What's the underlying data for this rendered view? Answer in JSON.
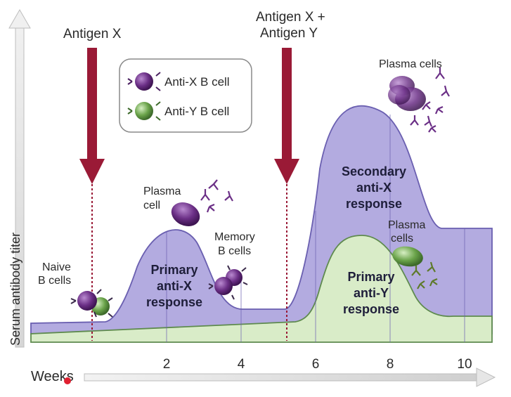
{
  "axes": {
    "y_label": "Serum antibody titer",
    "x_label": "Weeks",
    "x_ticks": [
      "2",
      "4",
      "6",
      "8",
      "10"
    ]
  },
  "arrows": {
    "antigen_x": "Antigen X",
    "antigen_xy_line1": "Antigen X +",
    "antigen_xy_line2": "Antigen Y"
  },
  "legend": {
    "anti_x": "Anti-X B cell",
    "anti_y": "Anti-Y B cell"
  },
  "labels": {
    "naive_line1": "Naive",
    "naive_line2": "B cells",
    "plasma1_line1": "Plasma",
    "plasma1_line2": "cell",
    "memory_line1": "Memory",
    "memory_line2": "B cells",
    "plasma_cells_top": "Plasma cells",
    "plasma2_line1": "Plasma",
    "plasma2_line2": "cells",
    "primary_x_1": "Primary",
    "primary_x_2": "anti-X",
    "primary_x_3": "response",
    "secondary_x_1": "Secondary",
    "secondary_x_2": "anti-X",
    "secondary_x_3": "response",
    "primary_y_1": "Primary",
    "primary_y_2": "anti-Y",
    "primary_y_3": "response"
  },
  "colors": {
    "purple_fill": "#b3abe0",
    "purple_edge": "#6a5fb0",
    "green_fill": "#d9ecc8",
    "green_edge": "#5e8a4e",
    "arrow": "#9a1a36",
    "cell_purple": "#6b2f86",
    "cell_green": "#5f9a3f"
  }
}
